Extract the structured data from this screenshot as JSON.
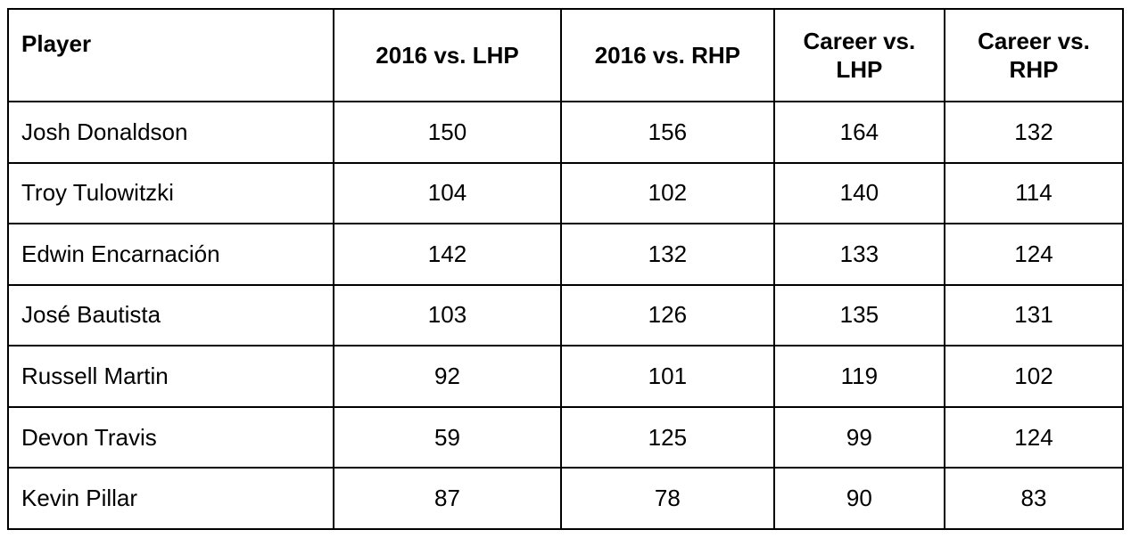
{
  "chart_data": {
    "type": "table",
    "title": "",
    "columns": [
      "Player",
      "2016 vs. LHP",
      "2016 vs. RHP",
      "Career vs. LHP",
      "Career vs. RHP"
    ],
    "rows": [
      {
        "player": "Josh Donaldson",
        "values": [
          150,
          156,
          164,
          132
        ]
      },
      {
        "player": "Troy Tulowitzki",
        "values": [
          104,
          102,
          140,
          114
        ]
      },
      {
        "player": "Edwin Encarnación",
        "values": [
          142,
          132,
          133,
          124
        ]
      },
      {
        "player": "José Bautista",
        "values": [
          103,
          126,
          135,
          131
        ]
      },
      {
        "player": "Russell Martin",
        "values": [
          92,
          101,
          119,
          102
        ]
      },
      {
        "player": "Devon Travis",
        "values": [
          59,
          125,
          99,
          124
        ]
      },
      {
        "player": "Kevin Pillar",
        "values": [
          87,
          78,
          90,
          83
        ]
      }
    ],
    "layout": {
      "grid": "all-borders",
      "border_color": "#000000",
      "header_bold": true,
      "first_column_align": "left",
      "value_align": "center"
    }
  }
}
